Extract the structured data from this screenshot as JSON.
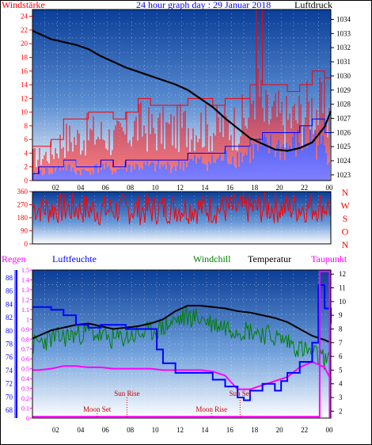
{
  "header": {
    "left_label": "Windstärke",
    "title": "24 hour graph day : 29 Januar 2018",
    "right_label": "Luftdruck"
  },
  "chart_data": [
    {
      "type": "line",
      "id": "wind-pressure",
      "title": "24 hour graph day : 29 Januar 2018",
      "y_left_label": "Windstärke",
      "y_right_label": "Luftdruck",
      "y_left_ticks": [
        "0",
        "2",
        "4",
        "6",
        "8",
        "10",
        "12",
        "14",
        "16",
        "18",
        "20",
        "22",
        "24"
      ],
      "y_left_range": [
        0,
        25
      ],
      "y_right_ticks": [
        "1023",
        "1024",
        "1025",
        "1026",
        "1027",
        "1028",
        "1029",
        "1030",
        "1031",
        "1032",
        "1033",
        "1034"
      ],
      "y_right_range": [
        1022.6,
        1034.7
      ],
      "x_ticks": [
        "02",
        "04",
        "06",
        "08",
        "10",
        "12",
        "14",
        "16",
        "18",
        "20",
        "22",
        "00"
      ],
      "x_range": [
        0.5,
        24.5
      ],
      "grid": true,
      "series": [
        {
          "name": "gust",
          "color": "#ff0000",
          "axis": "left",
          "x": [
            0.5,
            1,
            2,
            3,
            4,
            5,
            6,
            7,
            8,
            9,
            10,
            11,
            12,
            13,
            14,
            15,
            16,
            17,
            18,
            18.5,
            19,
            20,
            21,
            22,
            23,
            24,
            24.5
          ],
          "y": [
            5,
            5,
            6,
            9,
            9,
            10,
            10,
            9,
            10,
            12,
            11,
            11,
            11,
            12,
            12,
            11,
            12,
            12,
            14,
            25,
            14,
            14,
            13,
            14,
            16,
            15,
            14
          ]
        },
        {
          "name": "wind",
          "color": "#0000ff",
          "axis": "left",
          "x": [
            0.5,
            1,
            2,
            3,
            4,
            5,
            6,
            7,
            8,
            9,
            10,
            11,
            12,
            13,
            14,
            15,
            16,
            17,
            18,
            19,
            20,
            21,
            22,
            23,
            24,
            24.5
          ],
          "y": [
            1,
            2,
            2,
            3,
            2,
            2,
            3,
            2,
            3,
            3,
            3,
            3,
            3,
            4,
            4,
            4,
            5,
            5,
            6,
            7,
            7,
            7,
            8,
            9,
            7,
            5
          ]
        },
        {
          "name": "pressure",
          "color": "#000000",
          "axis": "right",
          "x": [
            0.5,
            1,
            2,
            3,
            4,
            5,
            6,
            7,
            8,
            9,
            10,
            11,
            12,
            13,
            14,
            15,
            16,
            17,
            18,
            19,
            20,
            21,
            22,
            23,
            24,
            24.5
          ],
          "y": [
            1033.2,
            1033.0,
            1032.6,
            1032.4,
            1032.2,
            1031.9,
            1031.4,
            1031.0,
            1030.6,
            1030.3,
            1030.0,
            1029.7,
            1029.4,
            1029.0,
            1028.4,
            1027.8,
            1027.0,
            1026.3,
            1025.6,
            1025.2,
            1024.8,
            1024.7,
            1024.9,
            1025.3,
            1026.4,
            1027.5
          ]
        }
      ]
    },
    {
      "type": "line",
      "id": "wind-direction",
      "y_left_ticks": [
        "0",
        "90",
        "180",
        "270",
        "360"
      ],
      "y_left_range": [
        0,
        360
      ],
      "y_right_labels": [
        "N",
        "W",
        "S",
        "O",
        "N"
      ],
      "x_range": [
        0.5,
        24.5
      ],
      "series": [
        {
          "name": "direction",
          "color": "#ff0000",
          "x": [
            0.5,
            2,
            4,
            6,
            8,
            10,
            12,
            14,
            16,
            18,
            20,
            22,
            24,
            24.5
          ],
          "y": [
            250,
            240,
            245,
            230,
            240,
            235,
            250,
            245,
            240,
            245,
            250,
            250,
            260,
            255
          ]
        }
      ]
    },
    {
      "type": "line",
      "id": "humidity-temperature",
      "labels": {
        "rain": "Regen",
        "humidity": "Luftfeuchte",
        "windchill": "Windchill",
        "temperature": "Temperatur",
        "dewpoint": "Taupunkt"
      },
      "y_humidity_ticks": [
        "68",
        "70",
        "72",
        "74",
        "76",
        "78",
        "80",
        "82",
        "84",
        "86",
        "88"
      ],
      "y_rain_ticks": [
        "0",
        "0.1",
        "0.2",
        "0.3",
        "0.4",
        "0.5",
        "0.6",
        "0.7",
        "0.8",
        "0.9",
        "1",
        "1.1",
        "1.2",
        "1.3",
        "1.4",
        "1.5"
      ],
      "y_temp_ticks": [
        "2",
        "3",
        "4",
        "5",
        "6",
        "7",
        "8",
        "9",
        "10",
        "11",
        "12"
      ],
      "y_temp_range": [
        1.5,
        12.3
      ],
      "x_ticks": [
        "02",
        "04",
        "06",
        "08",
        "10",
        "12",
        "14",
        "16",
        "18",
        "20",
        "22",
        "00"
      ],
      "x_range": [
        0.5,
        24.5
      ],
      "annotations": [
        {
          "text": "Moon Set",
          "x": 5.7,
          "row": "low"
        },
        {
          "text": "Sun Rise",
          "x": 8.1,
          "row": "high"
        },
        {
          "text": "Moon Rise",
          "x": 14.9,
          "row": "low"
        },
        {
          "text": "Sun Set",
          "x": 17.2,
          "row": "high"
        }
      ],
      "series": [
        {
          "name": "Temperatur",
          "color": "#000000",
          "x": [
            0.5,
            1,
            2,
            3,
            4,
            5,
            6,
            7,
            8,
            9,
            10,
            11,
            12,
            13,
            14,
            15,
            16,
            17,
            18,
            19,
            20,
            21,
            22,
            23,
            24,
            24.5
          ],
          "y": [
            7.3,
            7.5,
            7.9,
            8.1,
            8.3,
            8.4,
            8.2,
            8.0,
            8.1,
            8.2,
            8.4,
            8.7,
            9.3,
            9.7,
            9.7,
            9.6,
            9.5,
            9.3,
            9.2,
            9.0,
            8.8,
            8.5,
            8.0,
            7.5,
            7.2,
            7.0
          ]
        },
        {
          "name": "Windchill",
          "color": "#008000",
          "x": [
            0.5,
            1,
            2,
            3,
            4,
            5,
            6,
            7,
            8,
            9,
            10,
            11,
            12,
            13,
            14,
            15,
            16,
            17,
            18,
            19,
            20,
            21,
            22,
            23,
            24,
            24.5
          ],
          "y": [
            6.8,
            7.0,
            7.3,
            7.4,
            7.6,
            7.8,
            7.5,
            7.2,
            7.4,
            7.6,
            7.8,
            8.1,
            8.6,
            8.9,
            8.8,
            8.4,
            8.2,
            8.0,
            7.9,
            7.7,
            7.4,
            7.1,
            6.6,
            6.2,
            5.8,
            5.5
          ]
        },
        {
          "name": "Taupunkt",
          "color": "#ff00ff",
          "x": [
            0.5,
            1,
            2,
            3,
            4,
            5,
            6,
            7,
            8,
            9,
            10,
            11,
            12,
            13,
            14,
            15,
            16,
            17,
            18,
            19,
            20,
            21,
            22,
            23,
            24,
            24.5
          ],
          "y": [
            5.0,
            5.0,
            5.1,
            5.3,
            5.3,
            5.2,
            5.2,
            5.1,
            5.1,
            5.1,
            5.1,
            5.0,
            5.0,
            5.0,
            5.0,
            4.9,
            4.6,
            3.6,
            3.6,
            3.9,
            4.2,
            4.5,
            5.2,
            5.6,
            5.2,
            4.3
          ]
        },
        {
          "name": "Luftfeuchte",
          "color": "#0000ff",
          "x": [
            0.5,
            1.5,
            2,
            3,
            4,
            5,
            6,
            7,
            8,
            9,
            10,
            10.5,
            11,
            12,
            13,
            14,
            15,
            16,
            17,
            17.5,
            18,
            19,
            20,
            20.5,
            21,
            22,
            23,
            23.5,
            24,
            24.5
          ],
          "y": [
            9.6,
            9.6,
            9.4,
            9.0,
            8.3,
            8.1,
            8.3,
            8.3,
            8.0,
            8.0,
            8.0,
            6.5,
            5.5,
            4.8,
            4.8,
            4.8,
            4.3,
            3.8,
            3.0,
            2.8,
            3.5,
            4.0,
            3.5,
            4.2,
            4.8,
            5.6,
            7.0,
            11.2,
            9.5,
            8.4
          ]
        },
        {
          "name": "Regen",
          "color": "#ff00ff",
          "x": [
            0.5,
            23.5,
            23.6,
            24.3,
            24.4,
            24.5
          ],
          "y": [
            1.6,
            1.6,
            12.2,
            12.2,
            1.6,
            1.6
          ]
        }
      ]
    }
  ]
}
